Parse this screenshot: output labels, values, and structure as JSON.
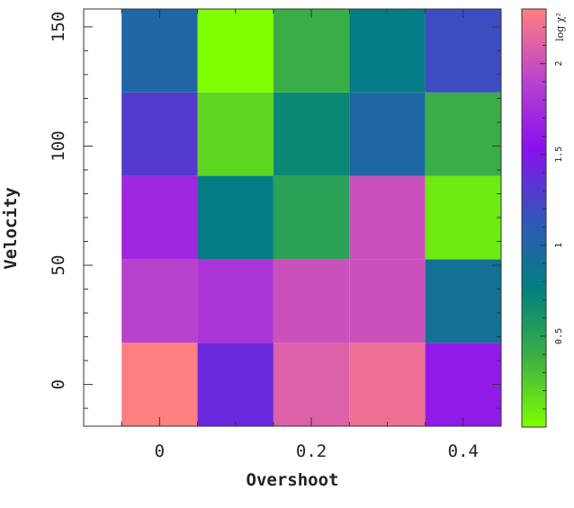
{
  "chart_data": {
    "type": "heatmap",
    "xlabel": "Overshoot",
    "ylabel": "Velocity",
    "x_ticks": [
      0,
      0.2,
      0.4
    ],
    "x_tick_labels": [
      "0",
      "0.2",
      "0.4"
    ],
    "y_ticks": [
      0,
      50,
      100,
      150
    ],
    "y_tick_labels": [
      "0",
      "50",
      "100",
      "150"
    ],
    "xlim": [
      -0.1,
      0.45
    ],
    "ylim": [
      -17.5,
      157.5
    ],
    "x": [
      0,
      0.1,
      0.2,
      0.3,
      0.4
    ],
    "y": [
      0,
      35,
      70,
      105,
      140
    ],
    "z": [
      [
        2.3,
        1.4,
        2.1,
        2.2,
        1.6
      ],
      [
        1.9,
        1.8,
        2.0,
        2.0,
        0.9
      ],
      [
        1.7,
        0.8,
        0.5,
        2.0,
        0.1
      ],
      [
        1.3,
        0.2,
        0.7,
        1.0,
        0.4
      ],
      [
        1.0,
        0.0,
        0.4,
        0.8,
        1.2
      ]
    ],
    "colorbar": {
      "label": "log χ²",
      "range": [
        0,
        2.3
      ],
      "ticks": [
        0.5,
        1,
        1.5,
        2
      ],
      "tick_labels": [
        "0.5",
        "1",
        "1.5",
        "2"
      ],
      "colors": [
        "#7fff00",
        "#3cb043",
        "#008080",
        "#3355bb",
        "#8811ee",
        "#bb44cc",
        "#ff8080"
      ]
    }
  }
}
